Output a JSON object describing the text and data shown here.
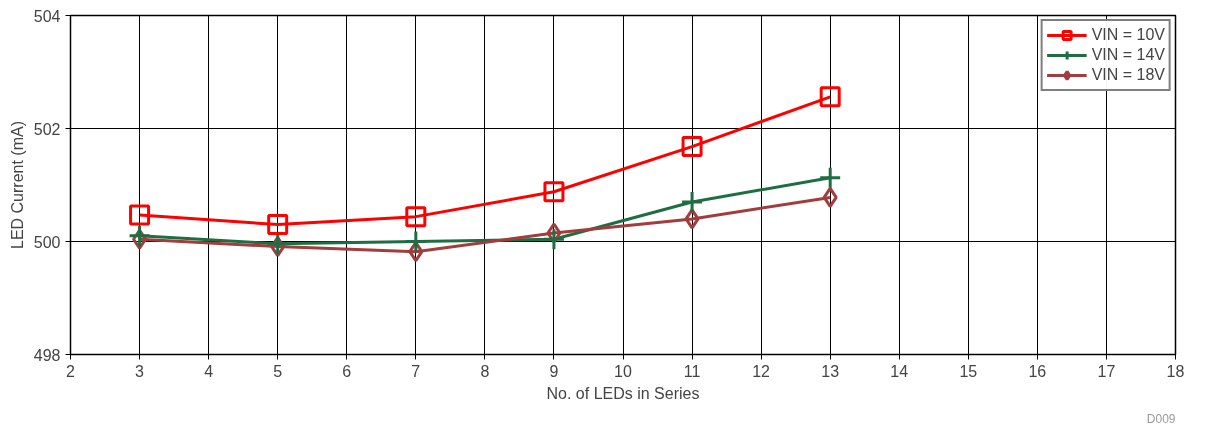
{
  "chart_data": {
    "type": "line",
    "xlabel": "No. of LEDs in Series",
    "ylabel": "LED Current (mA)",
    "x": [
      3,
      5,
      7,
      9,
      11,
      13
    ],
    "series": [
      {
        "name": "VIN = 10V",
        "color": "#ff0000",
        "marker": "square",
        "values": [
          500.47,
          500.3,
          500.44,
          500.88,
          501.68,
          502.56
        ]
      },
      {
        "name": "VIN = 14V",
        "color": "#1f6e43",
        "marker": "cross",
        "values": [
          500.1,
          499.96,
          500.0,
          500.04,
          500.7,
          501.13
        ]
      },
      {
        "name": "VIN = 18V",
        "color": "#a33c3c",
        "marker": "diamond",
        "values": [
          500.04,
          499.91,
          499.82,
          500.15,
          500.4,
          500.78
        ]
      }
    ],
    "xlim": [
      2,
      18
    ],
    "xticks": [
      2,
      3,
      4,
      5,
      6,
      7,
      8,
      9,
      10,
      11,
      12,
      13,
      14,
      15,
      16,
      17,
      18
    ],
    "ylim": [
      498,
      504
    ],
    "yticks": [
      498,
      500,
      502,
      504
    ],
    "grid": true,
    "legend": "top right",
    "line_style": "solid",
    "annotations": [
      "D009"
    ]
  }
}
